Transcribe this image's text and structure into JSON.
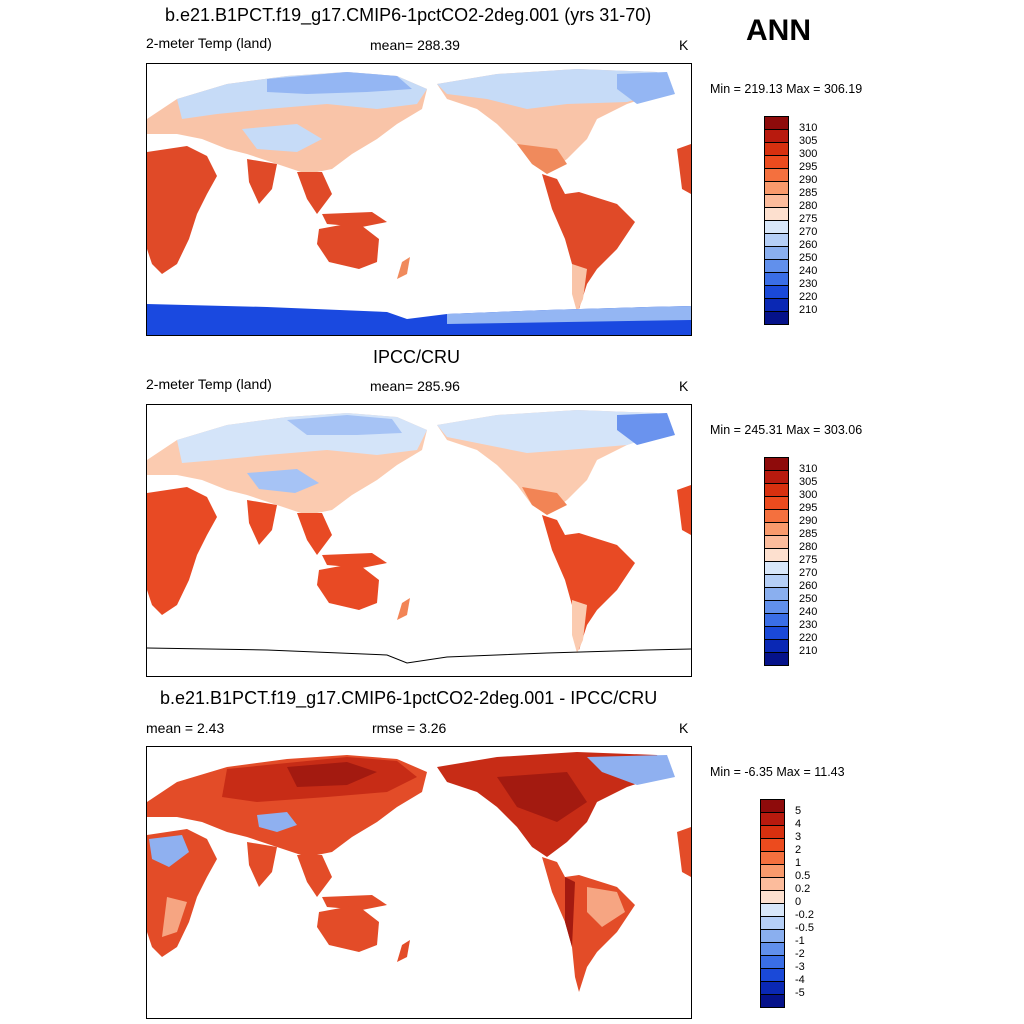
{
  "season": "ANN",
  "panels": [
    {
      "title": "b.e21.B1PCT.f19_g17.CMIP6-1pctCO2-2deg.001 (yrs 31-70)",
      "left_label": "2-meter Temp (land)",
      "center_label": "mean= 288.39",
      "unit": "K",
      "minmax": "Min = 219.13 Max = 306.19",
      "colorbar_ticks": [
        "310",
        "305",
        "300",
        "295",
        "290",
        "285",
        "280",
        "275",
        "270",
        "260",
        "250",
        "240",
        "230",
        "220",
        "210"
      ],
      "colors": {
        "ocean": "#ffffff",
        "tropics": "#e04a28",
        "mid": "#f08a5c",
        "warmtemp": "#f9c4a8",
        "cool": "#c6dbf7",
        "cold": "#94b6f3",
        "polar": "#2a5ee8",
        "antarctic": "#1a49e0"
      }
    },
    {
      "title": "IPCC/CRU",
      "left_label": "2-meter Temp (land)",
      "center_label": "mean= 285.96",
      "unit": "K",
      "minmax": "Min = 245.31 Max = 303.06",
      "colorbar_ticks": [
        "310",
        "305",
        "300",
        "295",
        "290",
        "285",
        "280",
        "275",
        "270",
        "260",
        "250",
        "240",
        "230",
        "220",
        "210"
      ],
      "colors": {
        "ocean": "#ffffff",
        "tropics": "#e84a24",
        "mid": "#f28455",
        "warmtemp": "#fbcbb0",
        "cool": "#d4e4f9",
        "cold": "#a6c3f5",
        "polar": "#6a93ee"
      }
    },
    {
      "title": "b.e21.B1PCT.f19_g17.CMIP6-1pctCO2-2deg.001 - IPCC/CRU",
      "left_label": "mean =   2.43",
      "center_label": "rmse =   3.26",
      "unit": "K",
      "minmax": "Min =  -6.35 Max =  11.43",
      "colorbar_ticks": [
        "5",
        "4",
        "3",
        "2",
        "1",
        "0.5",
        "0.2",
        "0",
        "-0.2",
        "-0.5",
        "-1",
        "-2",
        "-3",
        "-4",
        "-5"
      ],
      "colors": {
        "ocean": "#ffffff",
        "warm1": "#e34c28",
        "warm2": "#c72c16",
        "warm3": "#a31a10",
        "cool": "#8fb0f0",
        "warmpale": "#f6a582"
      }
    }
  ],
  "colorbar_colors": [
    "#8e0b0b",
    "#b81a0e",
    "#d7300f",
    "#ec4b1e",
    "#f4703e",
    "#f99a6c",
    "#fcbc9c",
    "#fde0cf",
    "#d8e7fa",
    "#b5cff7",
    "#8aafef",
    "#6190ec",
    "#3a6ee6",
    "#1a49d8",
    "#0a28b4",
    "#05128a"
  ]
}
